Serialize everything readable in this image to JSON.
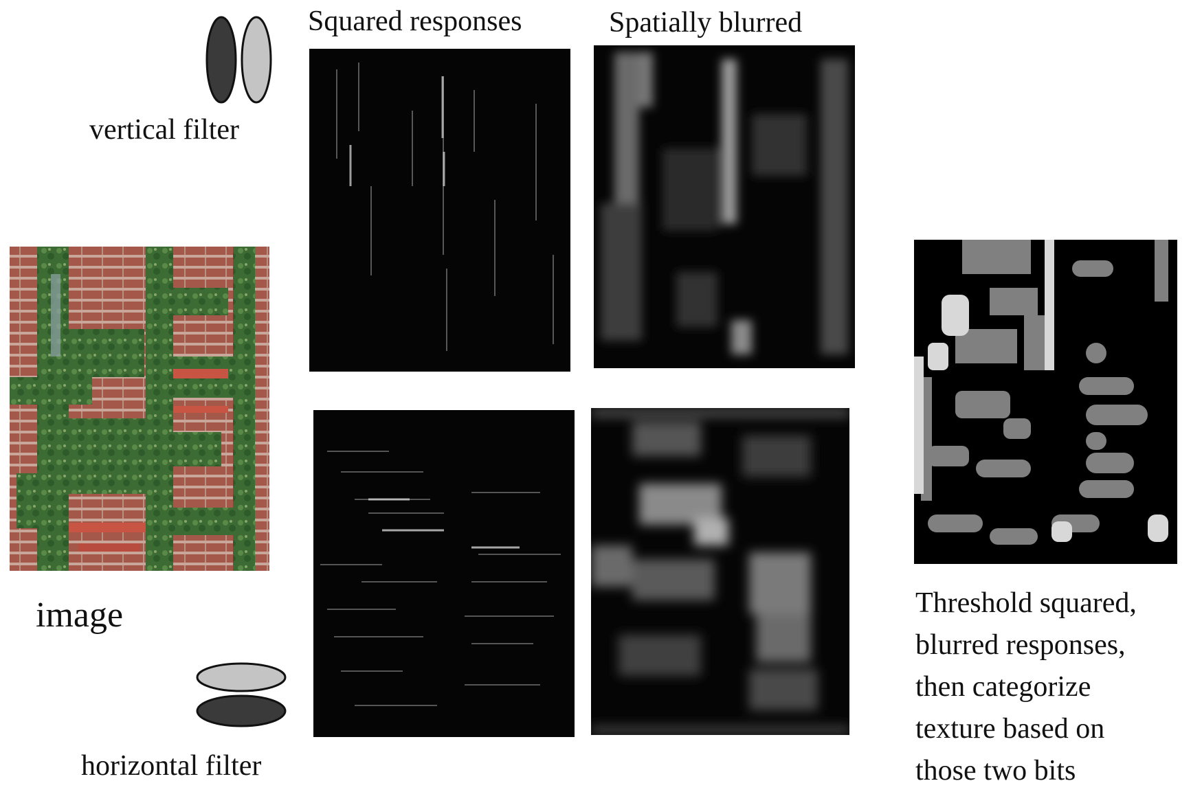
{
  "labels": {
    "vertical_filter": "vertical filter",
    "horizontal_filter": "horizontal filter",
    "image": "image",
    "squared_responses": "Squared responses",
    "spatially_blurred": "Spatially blurred"
  },
  "description": [
    "Threshold squared,",
    "blurred responses,",
    "then categorize",
    "texture based on",
    "those two bits"
  ],
  "colors": {
    "dark_lobe": "#3a3a3a",
    "light_lobe": "#c4c4c4",
    "panel_bg": "#050505",
    "brick": "#a4584a",
    "ivy": "#3d6b34"
  }
}
